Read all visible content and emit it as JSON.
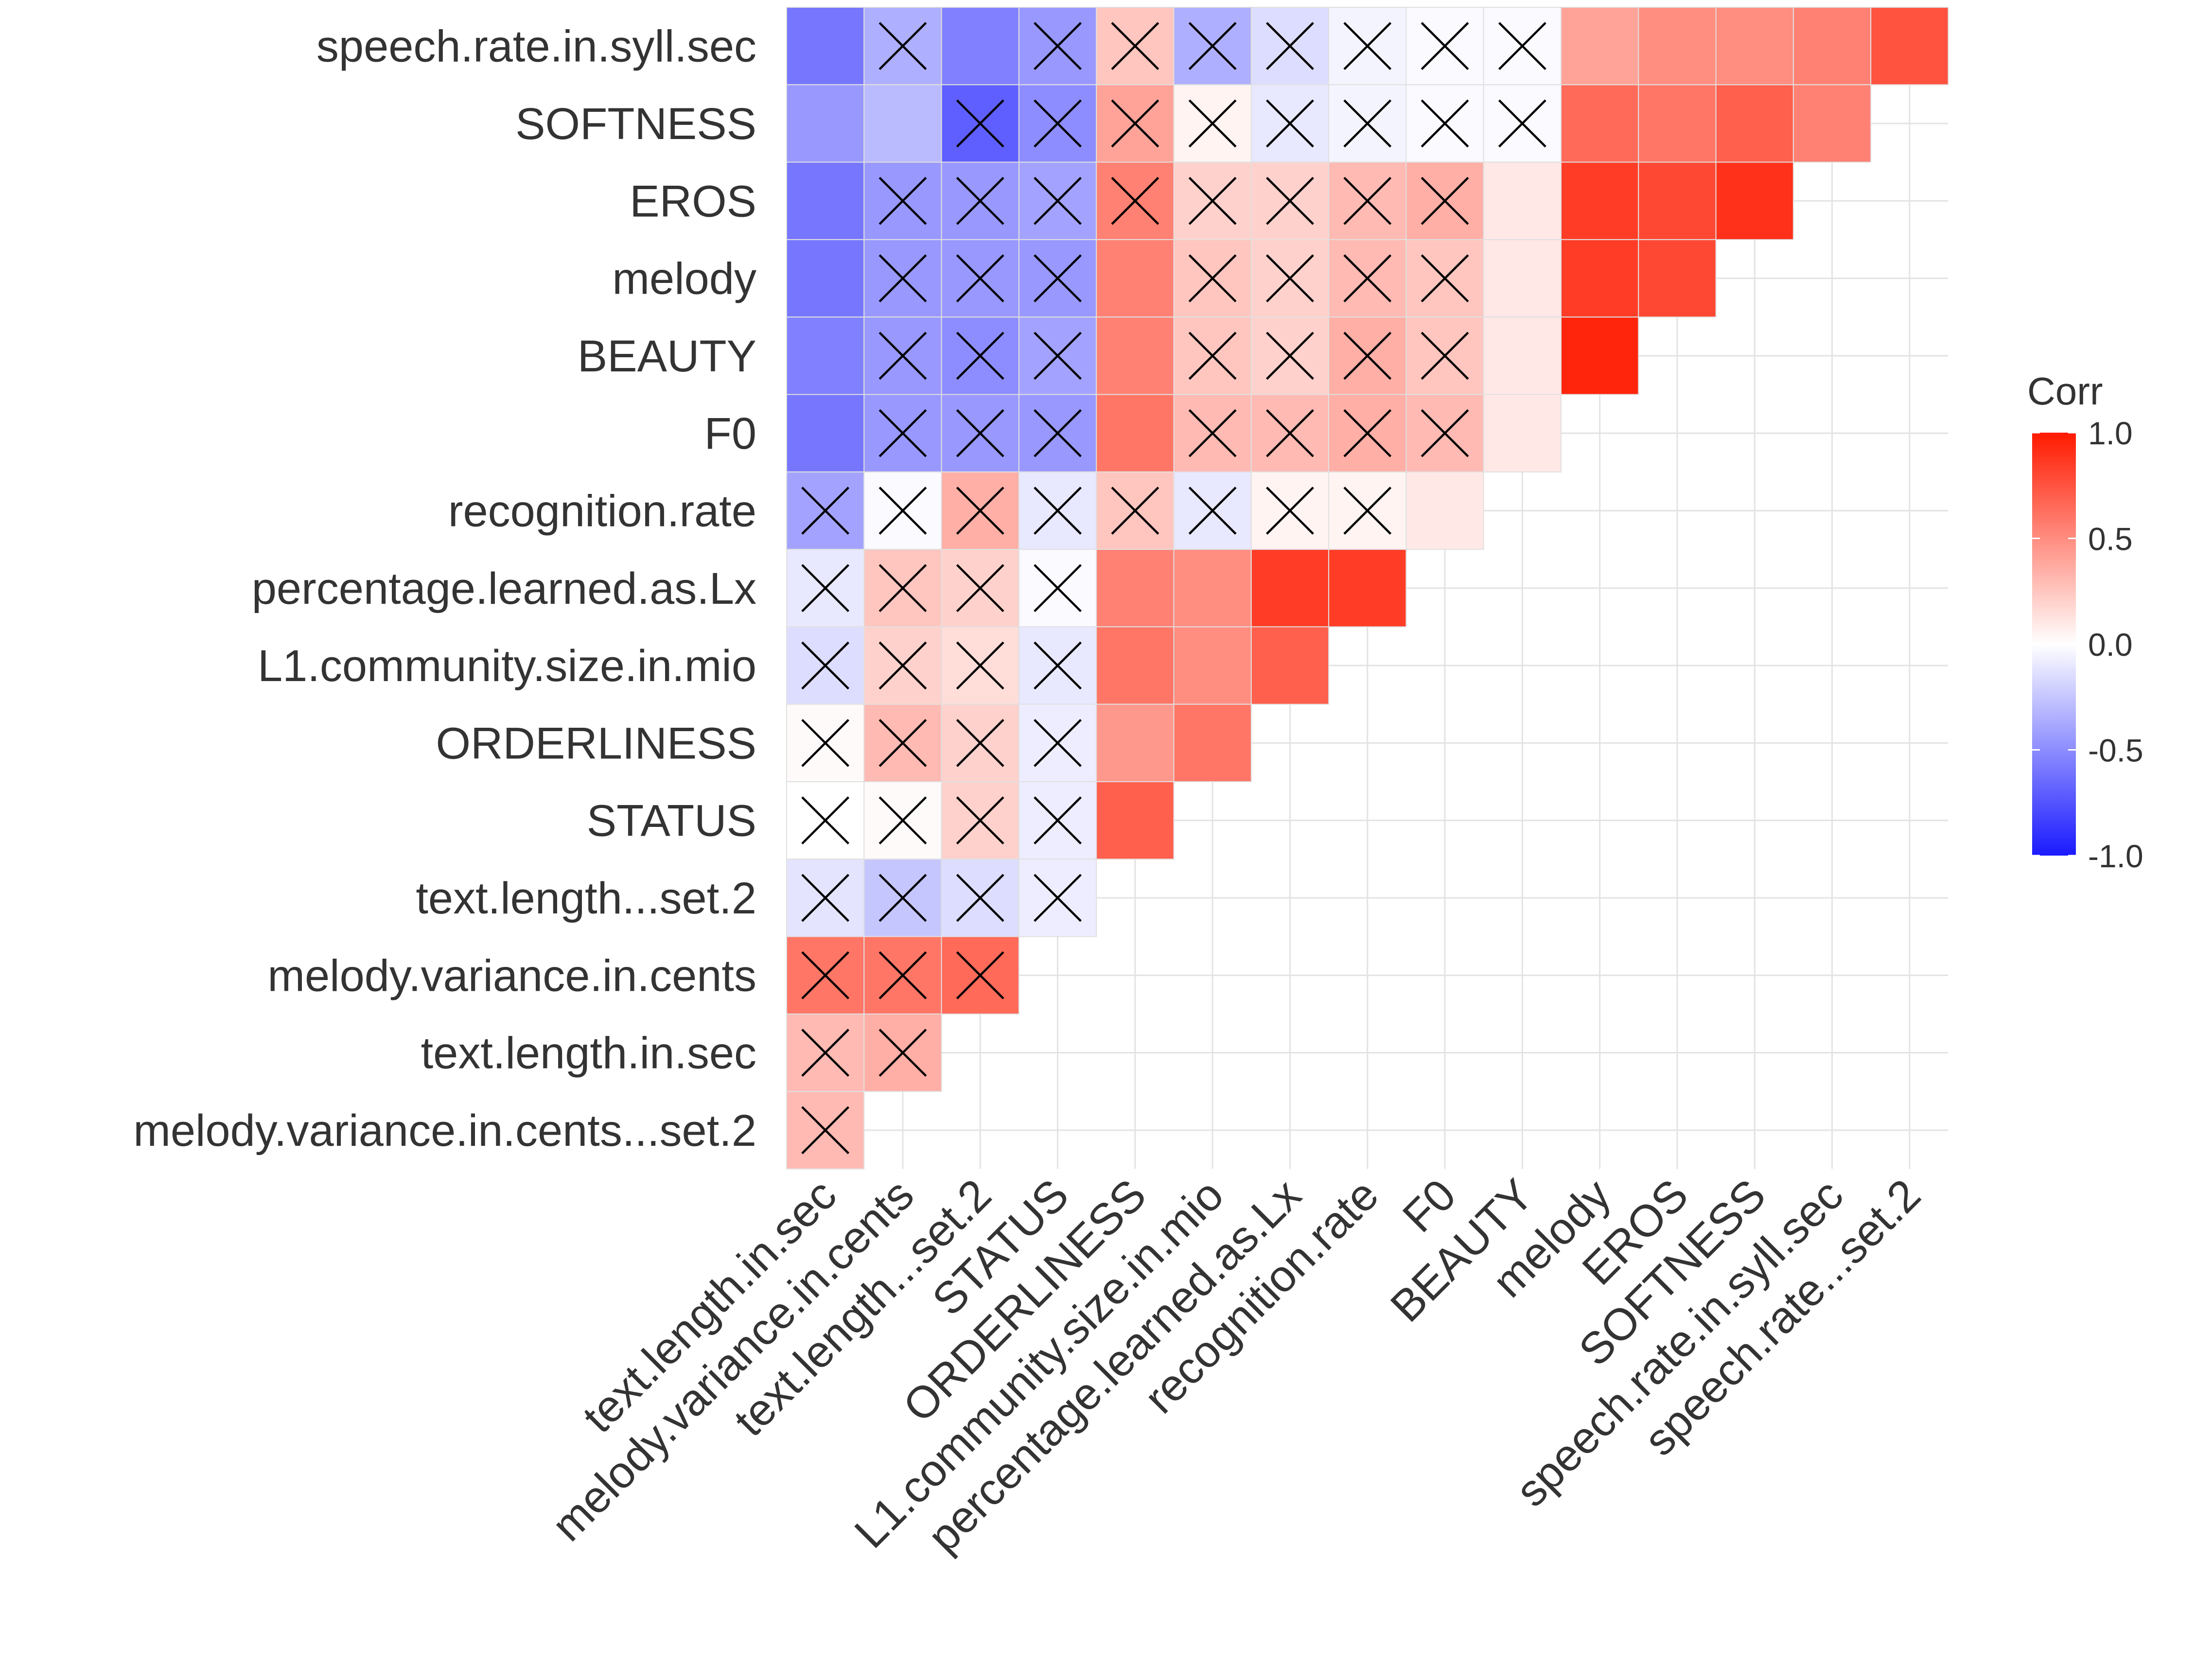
{
  "chart_data": {
    "type": "heatmap",
    "subtype": "correlation-matrix-lower-triangle",
    "variables": [
      "melody.variance.in.cents...set.2",
      "text.length.in.sec",
      "melody.variance.in.cents",
      "text.length...set.2",
      "STATUS",
      "ORDERLINESS",
      "L1.community.size.in.mio",
      "percentage.learned.as.Lx",
      "recognition.rate",
      "F0",
      "BEAUTY",
      "melody",
      "EROS",
      "SOFTNESS",
      "speech.rate.in.syll.sec",
      "speech.rate...set.2"
    ],
    "y_labels": [
      "speech.rate.in.syll.sec",
      "SOFTNESS",
      "EROS",
      "melody",
      "BEAUTY",
      "F0",
      "recognition.rate",
      "percentage.learned.as.Lx",
      "L1.community.size.in.mio",
      "ORDERLINESS",
      "STATUS",
      "text.length...set.2",
      "melody.variance.in.cents",
      "text.length.in.sec",
      "melody.variance.in.cents...set.2"
    ],
    "x_labels": [
      "text.length.in.sec",
      "melody.variance.in.cents",
      "text.length...set.2",
      "STATUS",
      "ORDERLINESS",
      "L1.community.size.in.mio",
      "percentage.learned.as.Lx",
      "recognition.rate",
      "F0",
      "BEAUTY",
      "melody",
      "EROS",
      "SOFTNESS",
      "speech.rate.in.syll.sec",
      "speech.rate...set.2"
    ],
    "note": "rows[i] = correlations of variables[i] with variables[0..i-1]; insignificant = indices marked with an X",
    "rows": [
      {
        "values": [],
        "insignificant": []
      },
      {
        "values": [
          0.3
        ],
        "insignificant": [
          0
        ]
      },
      {
        "values": [
          0.3,
          0.35
        ],
        "insignificant": [
          0,
          1
        ]
      },
      {
        "values": [
          0.6,
          0.6,
          0.65
        ],
        "insignificant": [
          0,
          1,
          2
        ]
      },
      {
        "values": [
          -0.12,
          -0.25,
          -0.15,
          -0.08
        ],
        "insignificant": [
          0,
          1,
          2,
          3
        ]
      },
      {
        "values": [
          0.0,
          0.02,
          0.2,
          -0.08,
          0.7
        ],
        "insignificant": [
          0,
          1,
          2,
          3
        ]
      },
      {
        "values": [
          0.02,
          0.3,
          0.2,
          -0.08,
          0.45,
          0.6
        ],
        "insignificant": [
          0,
          1,
          2,
          3
        ]
      },
      {
        "values": [
          -0.15,
          0.2,
          0.15,
          -0.1,
          0.6,
          0.5,
          0.7
        ],
        "insignificant": [
          0,
          1,
          2,
          3
        ]
      },
      {
        "values": [
          -0.1,
          0.25,
          0.2,
          -0.02,
          0.55,
          0.5,
          0.85,
          0.85
        ],
        "insignificant": [
          0,
          1,
          2,
          3
        ]
      },
      {
        "values": [
          -0.4,
          -0.02,
          0.35,
          -0.1,
          0.25,
          -0.1,
          0.05,
          0.05,
          0.1
        ],
        "insignificant": [
          0,
          1,
          2,
          3,
          4,
          5,
          6,
          7
        ]
      },
      {
        "values": [
          -0.6,
          -0.45,
          -0.45,
          -0.45,
          0.6,
          0.3,
          0.3,
          0.35,
          0.3,
          0.1
        ],
        "insignificant": [
          1,
          2,
          3,
          5,
          6,
          7,
          8
        ]
      },
      {
        "values": [
          -0.55,
          -0.45,
          -0.5,
          -0.4,
          0.55,
          0.25,
          0.2,
          0.35,
          0.25,
          0.1,
          0.95
        ],
        "insignificant": [
          1,
          2,
          3,
          5,
          6,
          7,
          8
        ]
      },
      {
        "values": [
          -0.6,
          -0.45,
          -0.45,
          -0.45,
          0.55,
          0.25,
          0.2,
          0.3,
          0.25,
          0.1,
          0.85,
          0.8
        ],
        "insignificant": [
          1,
          2,
          3,
          5,
          6,
          7,
          8
        ]
      },
      {
        "values": [
          -0.6,
          -0.45,
          -0.45,
          -0.4,
          0.55,
          0.2,
          0.2,
          0.3,
          0.35,
          0.1,
          0.85,
          0.8,
          0.9
        ],
        "insignificant": [
          1,
          2,
          3,
          4,
          5,
          6,
          7,
          8
        ]
      },
      {
        "values": [
          -0.45,
          -0.3,
          -0.7,
          -0.5,
          0.4,
          0.05,
          -0.1,
          -0.05,
          -0.02,
          -0.02,
          0.65,
          0.6,
          0.7,
          0.55
        ],
        "insignificant": [
          2,
          3,
          4,
          5,
          6,
          7,
          8,
          9
        ]
      },
      {
        "values": [
          -0.6,
          -0.35,
          -0.55,
          -0.45,
          0.25,
          -0.35,
          -0.15,
          -0.05,
          -0.02,
          -0.02,
          0.4,
          0.5,
          0.5,
          0.55,
          0.75
        ],
        "insignificant": [
          1,
          3,
          4,
          5,
          6,
          7,
          8,
          9
        ]
      }
    ],
    "color_scale": {
      "low": "#1a1aff",
      "mid": "#ffffff",
      "high": "#ff1a00",
      "domain": [
        -1.0,
        0.0,
        1.0
      ]
    },
    "legend": {
      "title": "Corr",
      "ticks": [
        "1.0",
        "0.5",
        "0.0",
        "-0.5",
        "-1.0"
      ],
      "tick_values": [
        1.0,
        0.5,
        0.0,
        -0.5,
        -1.0
      ],
      "position": "right"
    },
    "xlabel": "",
    "ylabel": "",
    "title": ""
  }
}
